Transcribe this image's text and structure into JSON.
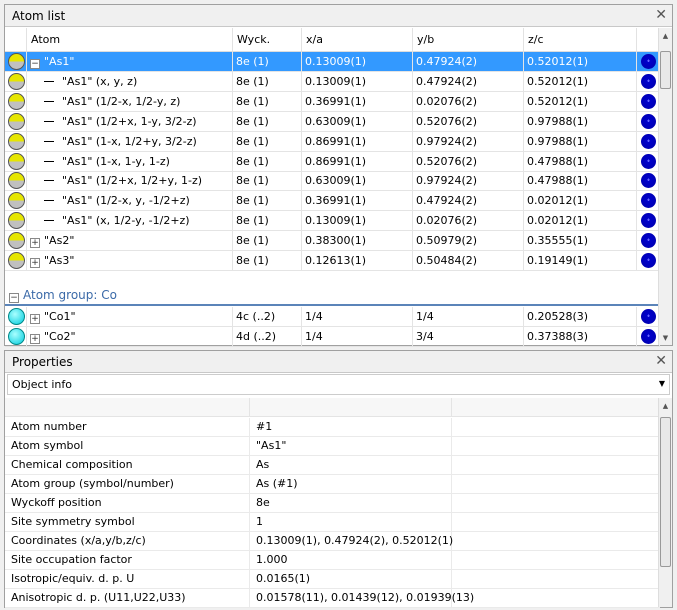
{
  "atom_list": {
    "title": "Atom list",
    "columns": [
      "Atom",
      "Wyck.",
      "x/a",
      "y/b",
      "z/c"
    ],
    "rows": [
      {
        "kind": "parent",
        "expand": "−",
        "atom": "\"As1\"",
        "wyck": "8e (1)",
        "x": "0.13009(1)",
        "y": "0.47924(2)",
        "z": "0.52012(1)",
        "selected": true,
        "element": "As"
      },
      {
        "kind": "child",
        "atom": "\"As1\" (x, y, z)",
        "wyck": "8e (1)",
        "x": "0.13009(1)",
        "y": "0.47924(2)",
        "z": "0.52012(1)",
        "element": "As"
      },
      {
        "kind": "child",
        "atom": "\"As1\" (1/2-x, 1/2-y, z)",
        "wyck": "8e (1)",
        "x": "0.36991(1)",
        "y": "0.02076(2)",
        "z": "0.52012(1)",
        "element": "As"
      },
      {
        "kind": "child",
        "atom": "\"As1\" (1/2+x, 1-y, 3/2-z)",
        "wyck": "8e (1)",
        "x": "0.63009(1)",
        "y": "0.52076(2)",
        "z": "0.97988(1)",
        "element": "As"
      },
      {
        "kind": "child",
        "atom": "\"As1\" (1-x, 1/2+y, 3/2-z)",
        "wyck": "8e (1)",
        "x": "0.86991(1)",
        "y": "0.97924(2)",
        "z": "0.97988(1)",
        "element": "As"
      },
      {
        "kind": "child",
        "atom": "\"As1\" (1-x, 1-y, 1-z)",
        "wyck": "8e (1)",
        "x": "0.86991(1)",
        "y": "0.52076(2)",
        "z": "0.47988(1)",
        "element": "As"
      },
      {
        "kind": "child",
        "atom": "\"As1\" (1/2+x, 1/2+y, 1-z)",
        "wyck": "8e (1)",
        "x": "0.63009(1)",
        "y": "0.97924(2)",
        "z": "0.47988(1)",
        "element": "As"
      },
      {
        "kind": "child",
        "atom": "\"As1\" (1/2-x, y, -1/2+z)",
        "wyck": "8e (1)",
        "x": "0.36991(1)",
        "y": "0.47924(2)",
        "z": "0.02012(1)",
        "element": "As"
      },
      {
        "kind": "child",
        "atom": "\"As1\" (x, 1/2-y, -1/2+z)",
        "wyck": "8e (1)",
        "x": "0.13009(1)",
        "y": "0.02076(2)",
        "z": "0.02012(1)",
        "element": "As"
      },
      {
        "kind": "parent",
        "expand": "+",
        "atom": "\"As2\"",
        "wyck": "8e (1)",
        "x": "0.38300(1)",
        "y": "0.50979(2)",
        "z": "0.35555(1)",
        "element": "As"
      },
      {
        "kind": "parent",
        "expand": "+",
        "atom": "\"As3\"",
        "wyck": "8e (1)",
        "x": "0.12613(1)",
        "y": "0.50484(2)",
        "z": "0.19149(1)",
        "element": "As"
      }
    ],
    "group": {
      "expand": "−",
      "label": "Atom group: Co"
    },
    "group_rows": [
      {
        "kind": "parent",
        "expand": "+",
        "atom": "\"Co1\"",
        "wyck": "4c (..2)",
        "x": "1/4",
        "y": "1/4",
        "z": "0.20528(3)",
        "element": "Co"
      },
      {
        "kind": "parent",
        "expand": "+",
        "atom": "\"Co2\"",
        "wyck": "4d (..2)",
        "x": "1/4",
        "y": "3/4",
        "z": "0.37388(3)",
        "element": "Co"
      }
    ]
  },
  "properties": {
    "title": "Properties",
    "dropdown": "Object info",
    "rows": [
      {
        "label": "Atom number",
        "value": "#1"
      },
      {
        "label": "Atom symbol",
        "value": "\"As1\""
      },
      {
        "label": "Chemical composition",
        "value": "As"
      },
      {
        "label": "Atom group (symbol/number)",
        "value": "As (#1)"
      },
      {
        "label": "Wyckoff position",
        "value": "8e"
      },
      {
        "label": "Site symmetry symbol",
        "value": "1"
      },
      {
        "label": "Coordinates (x/a,y/b,z/c)",
        "value": "0.13009(1), 0.47924(2), 0.52012(1)"
      },
      {
        "label": "Site occupation factor",
        "value": "1.000"
      },
      {
        "label": "Isotropic/equiv. d. p. U",
        "value": "0.0165(1)"
      },
      {
        "label": "Anisotropic d. p. (U11,U22,U33)",
        "value": "0.01578(11), 0.01439(12), 0.01939(13)"
      }
    ]
  },
  "colors": {
    "selection": "#3399ff",
    "group_text": "#3b6aa8",
    "as_atom": "#e6e600",
    "co_atom": "#00ccdd",
    "marker": "#0000cc"
  }
}
